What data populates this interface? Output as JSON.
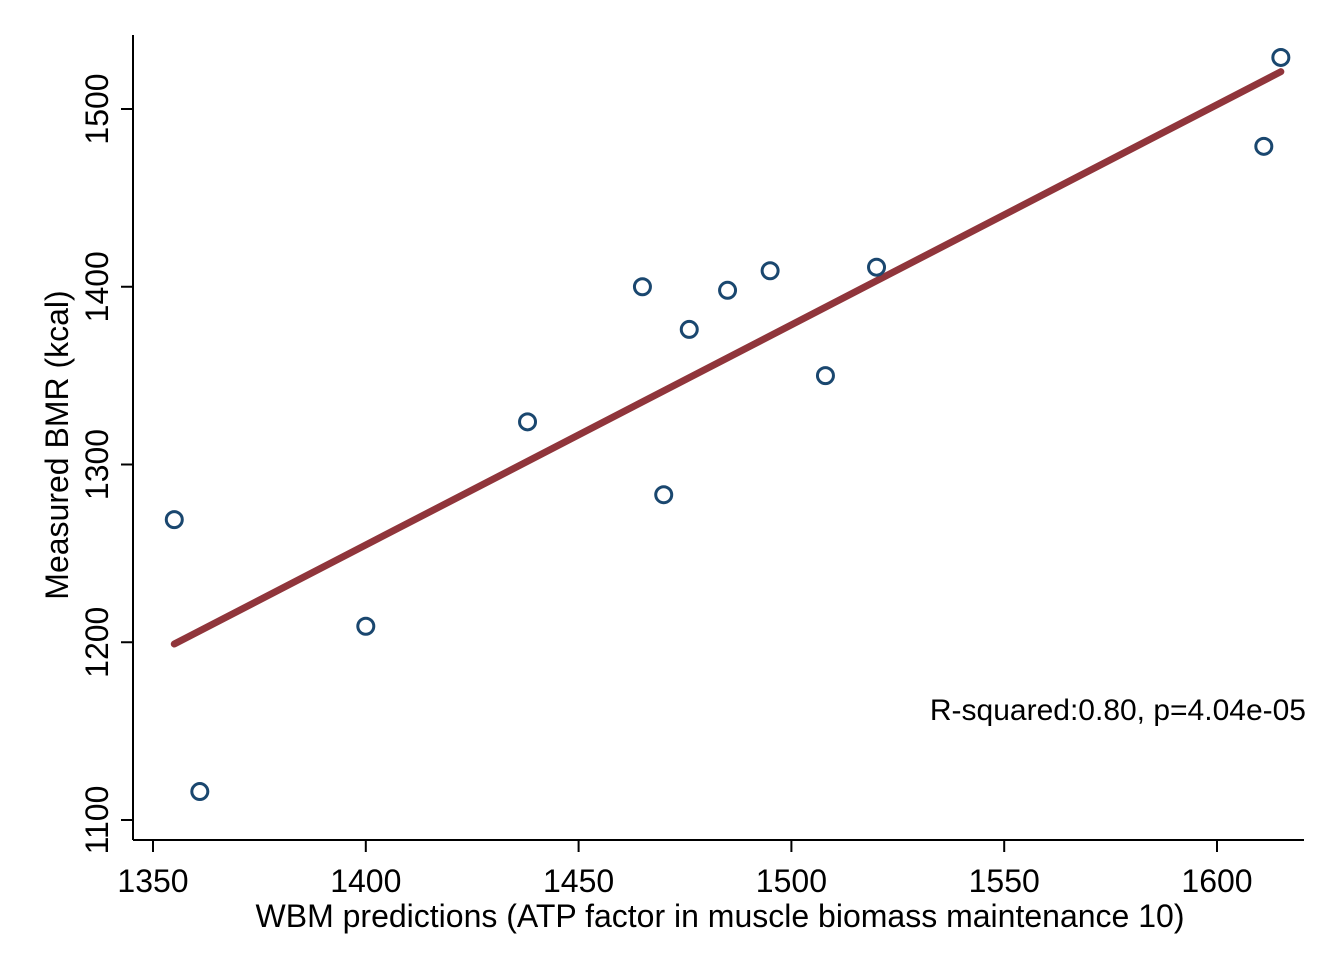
{
  "chart_data": {
    "type": "scatter",
    "xlabel": "WBM predictions (ATP factor in muscle biomass maintenance 10)",
    "ylabel": "Measured BMR (kcal)",
    "xlim": [
      1345,
      1620
    ],
    "ylim": [
      1090,
      1545
    ],
    "x_ticks": [
      1350,
      1400,
      1450,
      1500,
      1550,
      1600
    ],
    "y_ticks": [
      1100,
      1200,
      1300,
      1400,
      1500
    ],
    "grid": false,
    "legend": "none",
    "points": [
      {
        "x": 1355,
        "y": 1269
      },
      {
        "x": 1361,
        "y": 1116
      },
      {
        "x": 1400,
        "y": 1209
      },
      {
        "x": 1438,
        "y": 1324
      },
      {
        "x": 1465,
        "y": 1400
      },
      {
        "x": 1470,
        "y": 1283
      },
      {
        "x": 1476,
        "y": 1376
      },
      {
        "x": 1485,
        "y": 1398
      },
      {
        "x": 1495,
        "y": 1409
      },
      {
        "x": 1508,
        "y": 1350
      },
      {
        "x": 1520,
        "y": 1411
      },
      {
        "x": 1611,
        "y": 1479
      },
      {
        "x": 1615,
        "y": 1529
      }
    ],
    "fit_line": {
      "x": [
        1355,
        1615
      ],
      "y": [
        1199,
        1521
      ]
    },
    "annotation": "R-squared:0.80, p=4.04e-05",
    "colors": {
      "marker": "#1a476f",
      "fit_line": "#90353b",
      "axis": "#000000"
    }
  }
}
